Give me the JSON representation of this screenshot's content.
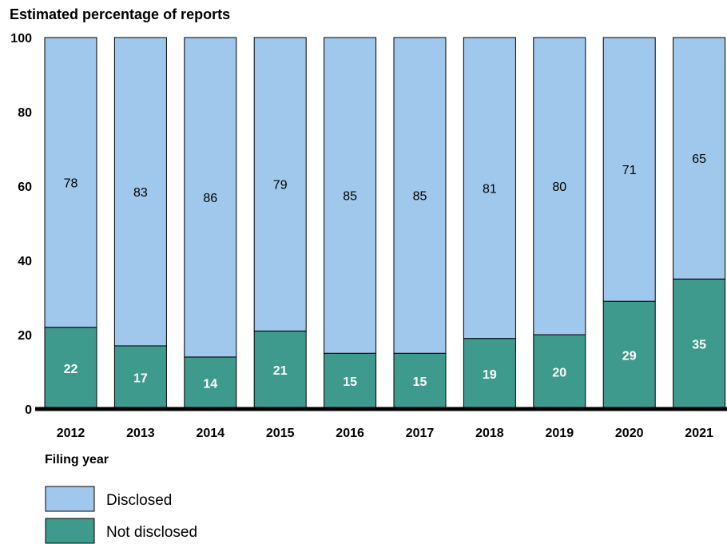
{
  "chart_data": {
    "type": "bar",
    "stacked": true,
    "title": "",
    "ylabel": "Estimated percentage of reports",
    "xlabel": "Filing year",
    "ylim": [
      0,
      100
    ],
    "yticks": [
      0,
      20,
      40,
      60,
      80,
      100
    ],
    "grid": false,
    "legend_position": "bottom-left",
    "categories": [
      "2012",
      "2013",
      "2014",
      "2015",
      "2016",
      "2017",
      "2018",
      "2019",
      "2020",
      "2021"
    ],
    "series": [
      {
        "name": "Not disclosed",
        "color": "#3f9a8e",
        "label_color": "#ffffff",
        "values": [
          22,
          17,
          14,
          21,
          15,
          15,
          19,
          20,
          29,
          35
        ]
      },
      {
        "name": "Disclosed",
        "color": "#9fc8ec",
        "label_color": "#000000",
        "values": [
          78,
          83,
          86,
          79,
          85,
          85,
          81,
          80,
          71,
          65
        ]
      }
    ],
    "legend_order": [
      "Disclosed",
      "Not disclosed"
    ]
  }
}
